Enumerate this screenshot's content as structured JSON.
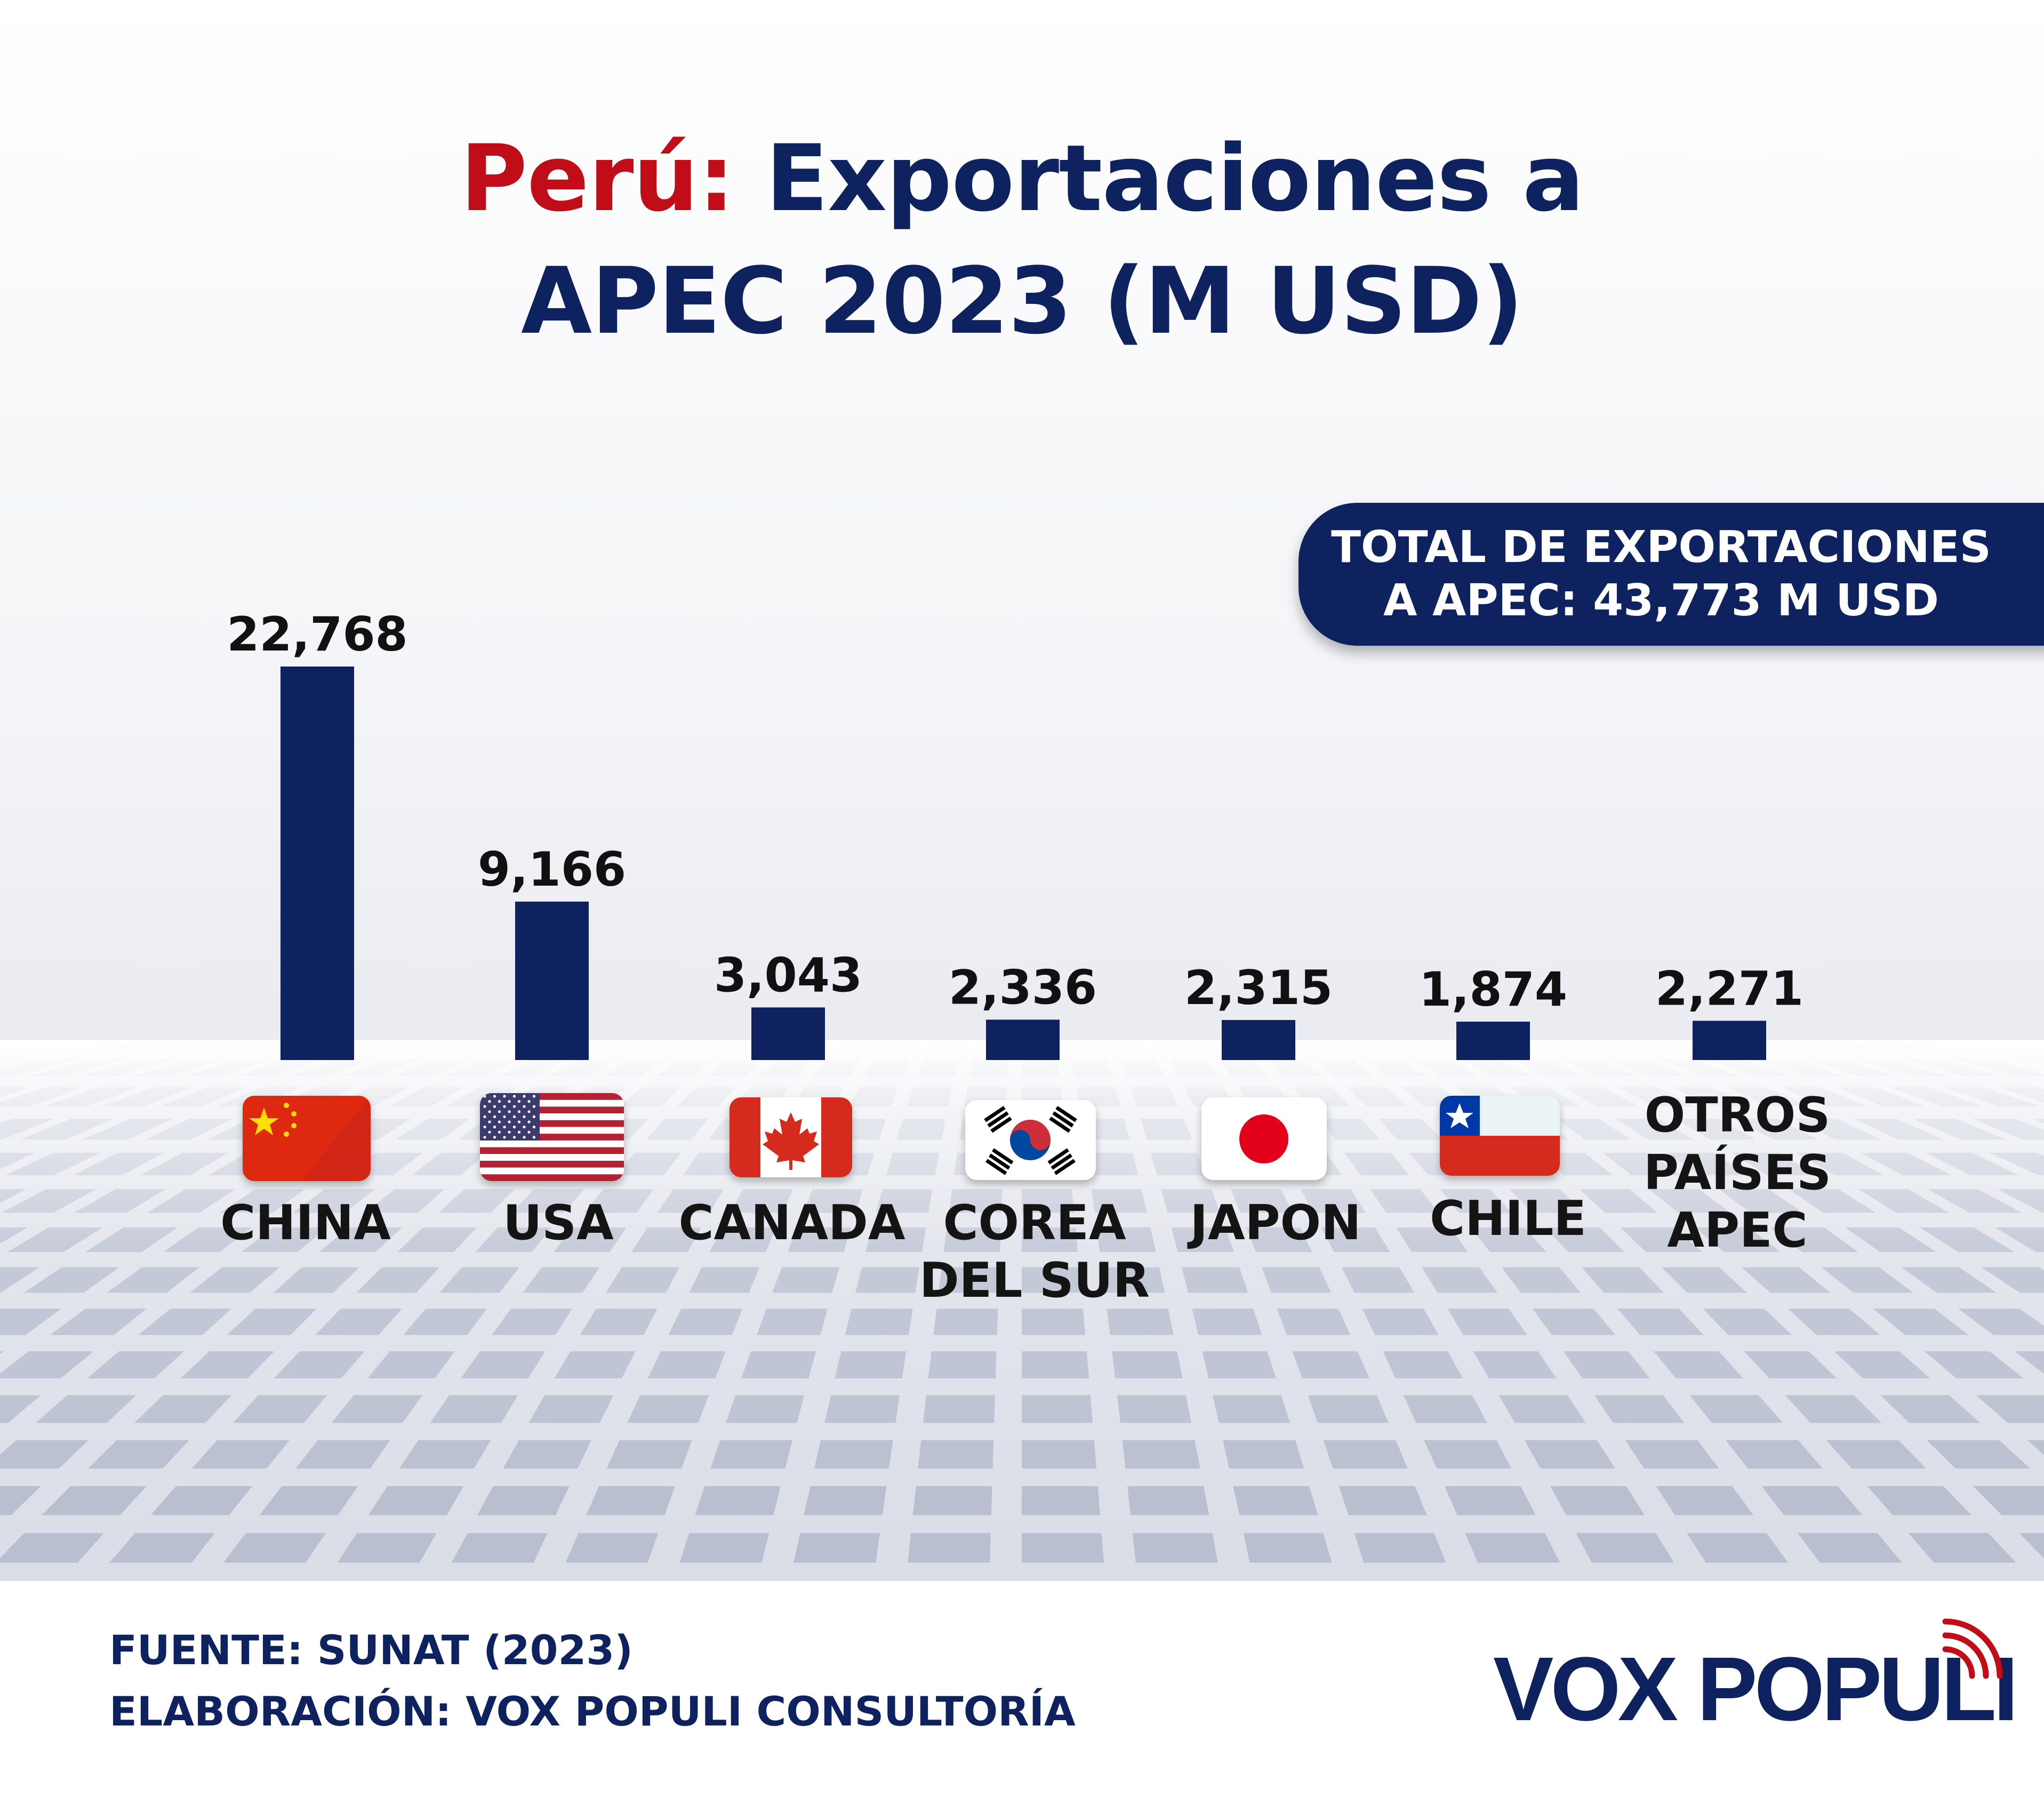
{
  "header": {
    "title_red": "Perú:",
    "title_line1": "Exportaciones a",
    "title_line2": "APEC 2023 (M USD)"
  },
  "total_box": {
    "line1": "TOTAL DE EXPORTACIONES",
    "line2": "A APEC: 43,773 M USD"
  },
  "chart_data": {
    "type": "bar",
    "title": "Perú: Exportaciones a APEC 2023 (M USD)",
    "categories": [
      "CHINA",
      "USA",
      "CANADA",
      "COREA DEL SUR",
      "JAPON",
      "CHILE",
      "OTROS PAÍSES APEC"
    ],
    "values": [
      22768,
      9166,
      3043,
      2336,
      2315,
      1874,
      2271
    ],
    "value_labels": [
      "22,768",
      "9,166",
      "3,043",
      "2,336",
      "2,315",
      "1,874",
      "2,271"
    ],
    "xlabel": "",
    "ylabel": "M USD",
    "ylim": [
      0,
      22768
    ],
    "bar_color": "#0f2260",
    "grid": false
  },
  "categories_display": [
    {
      "line1": "CHINA",
      "line2": "",
      "line3": "",
      "flag": "china-flag"
    },
    {
      "line1": "USA",
      "line2": "",
      "line3": "",
      "flag": "usa-flag"
    },
    {
      "line1": "CANADA",
      "line2": "",
      "line3": "",
      "flag": "canada-flag"
    },
    {
      "line1": "COREA",
      "line2": "DEL SUR",
      "line3": "",
      "flag": "south-korea-flag"
    },
    {
      "line1": "JAPON",
      "line2": "",
      "line3": "",
      "flag": "japan-flag"
    },
    {
      "line1": "CHILE",
      "line2": "",
      "line3": "",
      "flag": "chile-flag"
    },
    {
      "line1": "OTROS",
      "line2": "PAÍSES",
      "line3": "APEC",
      "flag": ""
    }
  ],
  "footer": {
    "source": "FUENTE: SUNAT (2023)",
    "credit": "ELABORACIÓN: VOX POPULI CONSULTORÍA",
    "logo_text": "VOX POPULI"
  },
  "colors": {
    "navy": "#0f2260",
    "red": "#c00d17"
  }
}
